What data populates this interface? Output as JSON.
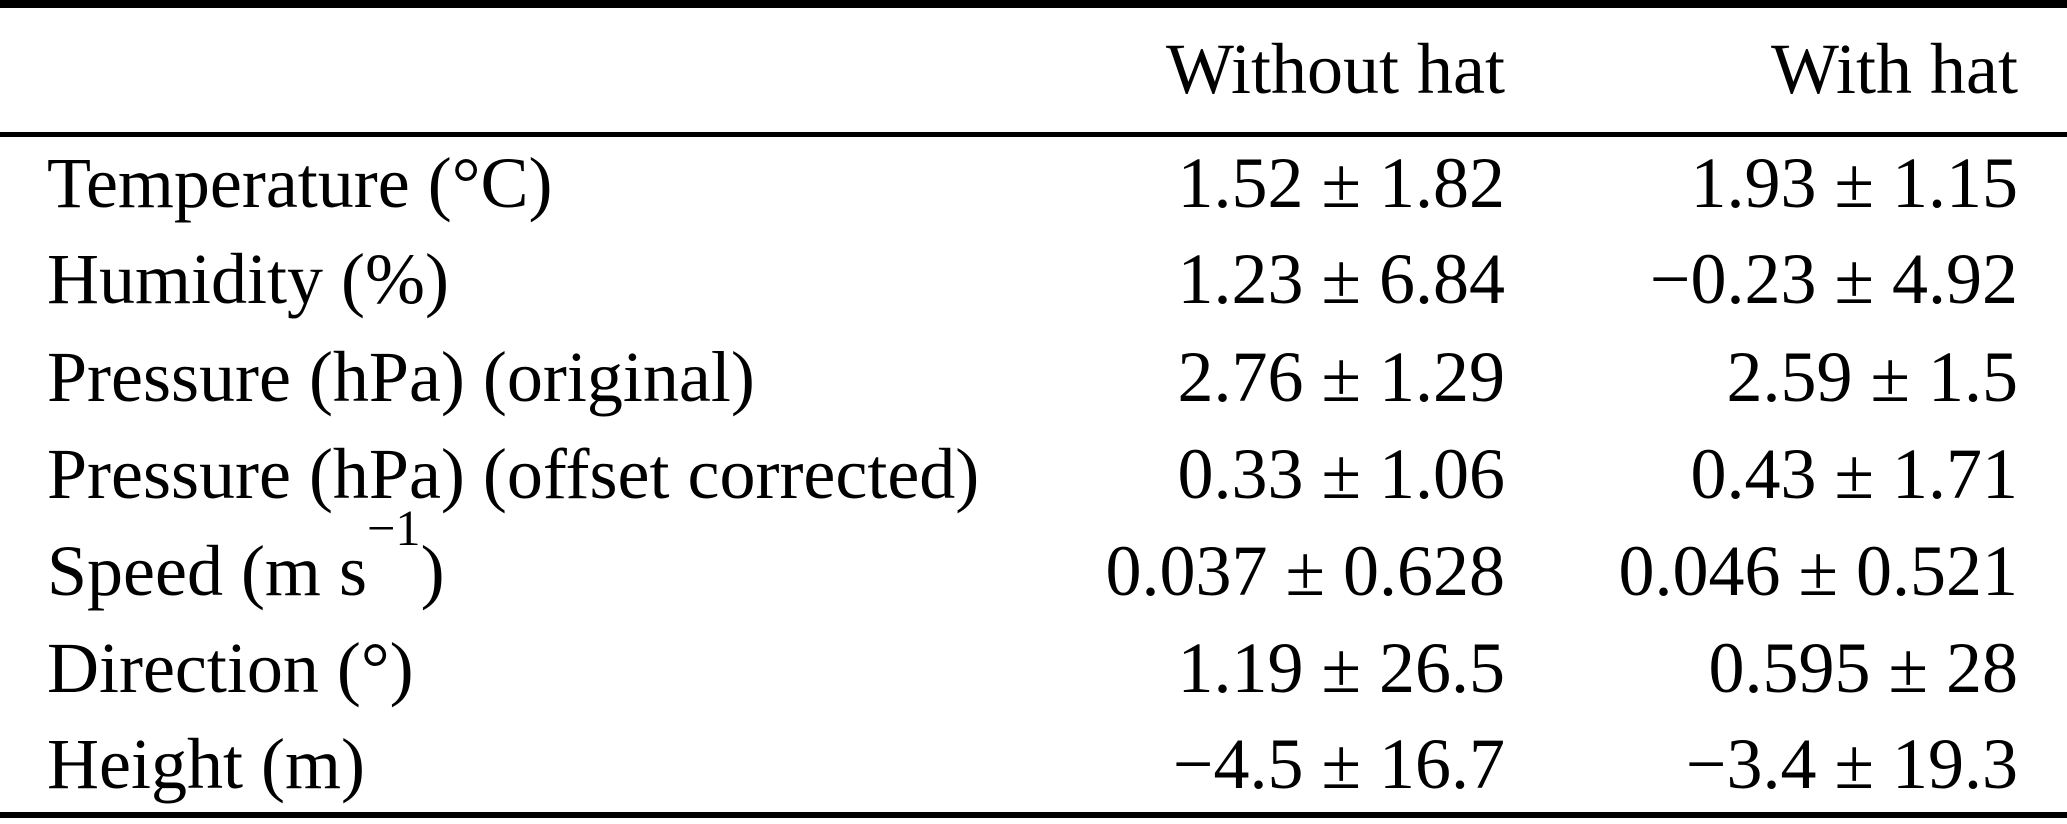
{
  "table": {
    "columns": {
      "label": "",
      "without_hat": "Without hat",
      "with_hat": "With hat"
    },
    "rows": [
      {
        "label": "Temperature (°C)",
        "without_hat": "1.52 ± 1.82",
        "with_hat": "1.93 ± 1.15"
      },
      {
        "label": "Humidity (%)",
        "without_hat": "1.23 ± 6.84",
        "with_hat": "−0.23 ± 4.92"
      },
      {
        "label": "Pressure (hPa) (original)",
        "without_hat": "2.76 ± 1.29",
        "with_hat": "2.59 ± 1.5"
      },
      {
        "label": "Pressure (hPa) (offset corrected)",
        "without_hat": "0.33 ± 1.06",
        "with_hat": "0.43 ± 1.71"
      },
      {
        "label": "Speed (m s",
        "label_sup": "−1",
        "label_post": ")",
        "without_hat": "0.037 ± 0.628",
        "with_hat": "0.046 ± 0.521"
      },
      {
        "label": "Direction (°)",
        "without_hat": "1.19 ± 26.5",
        "with_hat": "0.595 ± 28"
      },
      {
        "label": "Height (m)",
        "without_hat": "−4.5 ± 16.7",
        "with_hat": "−3.4 ± 19.3"
      }
    ]
  },
  "chart_data": {
    "type": "table",
    "columns": [
      "",
      "Without hat",
      "With hat"
    ],
    "rows": [
      [
        "Temperature (°C)",
        "1.52 ± 1.82",
        "1.93 ± 1.15"
      ],
      [
        "Humidity (%)",
        "1.23 ± 6.84",
        "−0.23 ± 4.92"
      ],
      [
        "Pressure (hPa) (original)",
        "2.76 ± 1.29",
        "2.59 ± 1.5"
      ],
      [
        "Pressure (hPa) (offset corrected)",
        "0.33 ± 1.06",
        "0.43 ± 1.71"
      ],
      [
        "Speed (m s⁻¹)",
        "0.037 ± 0.628",
        "0.046 ± 0.521"
      ],
      [
        "Direction (°)",
        "1.19 ± 26.5",
        "0.595 ± 28"
      ],
      [
        "Height (m)",
        "−4.5 ± 16.7",
        "−3.4 ± 19.3"
      ]
    ]
  },
  "colors": {
    "text": "#000000",
    "background": "#ffffff",
    "rule": "#000000"
  }
}
